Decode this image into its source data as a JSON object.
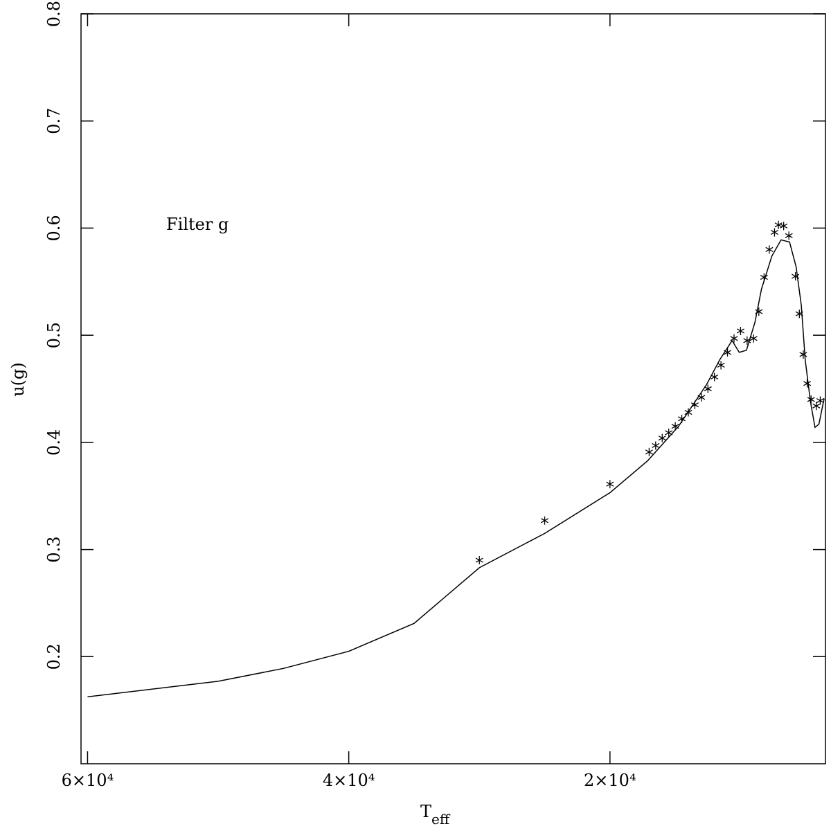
{
  "chart_data": {
    "type": "line",
    "annotation": "Filter g",
    "x_label": "T",
    "x_label_subscript": "eff",
    "y_label": "u(g)",
    "xlim": [
      60500,
      3500
    ],
    "ylim": [
      0.1,
      0.8
    ],
    "xticks": [
      {
        "value": 60000,
        "label": "6×10⁴"
      },
      {
        "value": 40000,
        "label": "4×10⁴"
      },
      {
        "value": 20000,
        "label": "2×10⁴"
      }
    ],
    "yticks": [
      0.2,
      0.3,
      0.4,
      0.5,
      0.6,
      0.7,
      0.8
    ],
    "series": [
      {
        "type": "line",
        "color": "#000000",
        "x": [
          60000,
          50000,
          45000,
          40000,
          35000,
          30000,
          25000,
          20000,
          17100,
          14750,
          12600,
          11600,
          10650,
          10100,
          9550,
          8900,
          8400,
          7600,
          6900,
          6250,
          5750,
          5350,
          5050,
          4650,
          4300,
          4000,
          3600
        ],
        "values": [
          0.1625,
          0.177,
          0.189,
          0.205,
          0.231,
          0.283,
          0.315,
          0.353,
          0.383,
          0.415,
          0.454,
          0.477,
          0.495,
          0.484,
          0.486,
          0.512,
          0.543,
          0.574,
          0.589,
          0.587,
          0.564,
          0.528,
          0.477,
          0.438,
          0.414,
          0.417,
          0.441
        ]
      },
      {
        "type": "scatter",
        "color": "#000000",
        "x": [
          30000,
          25000,
          20000,
          17000,
          16500,
          16000,
          15500,
          15000,
          14500,
          14000,
          13500,
          13000,
          12500,
          12000,
          11500,
          11000,
          10500,
          10000,
          9500,
          9000,
          8600,
          8200,
          7800,
          7400,
          7100,
          6700,
          6300,
          5800,
          5500,
          5200,
          4900,
          4600,
          4200,
          3900
        ],
        "values": [
          0.29,
          0.327,
          0.361,
          0.391,
          0.397,
          0.404,
          0.409,
          0.415,
          0.422,
          0.428,
          0.435,
          0.442,
          0.45,
          0.461,
          0.472,
          0.484,
          0.497,
          0.504,
          0.495,
          0.497,
          0.522,
          0.554,
          0.58,
          0.596,
          0.603,
          0.602,
          0.593,
          0.555,
          0.52,
          0.482,
          0.455,
          0.44,
          0.434,
          0.439
        ]
      }
    ]
  }
}
